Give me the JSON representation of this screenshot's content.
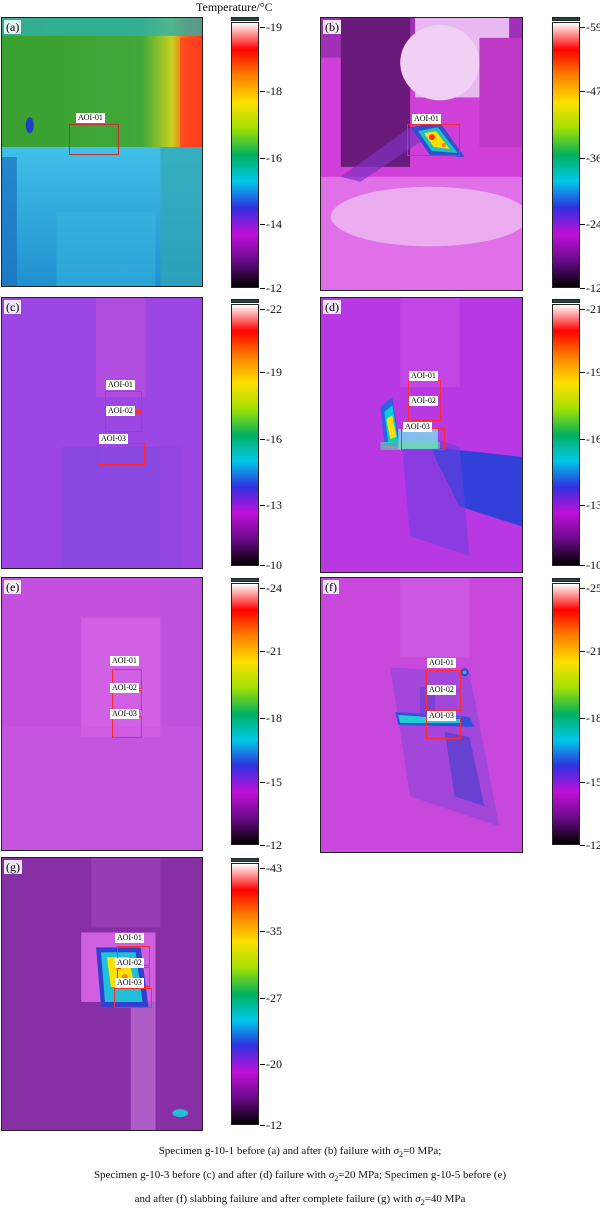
{
  "temperature_label": "Temperature/°C",
  "colorbar_gradient": [
    "#000000",
    "#6a0a8a",
    "#c010d8",
    "#3030e0",
    "#00c8e8",
    "#00b060",
    "#a0e000",
    "#ffe000",
    "#ff8000",
    "#ff0000",
    "#ffffff"
  ],
  "panels": [
    {
      "id": "a",
      "label": "(a)",
      "ticks": [
        "-19",
        "-18",
        "-16",
        "-14",
        "-12"
      ],
      "aois": [
        {
          "label": "AOI-01"
        }
      ]
    },
    {
      "id": "b",
      "label": "(b)",
      "ticks": [
        "-59",
        "-47",
        "-36",
        "-24",
        "-12"
      ],
      "aois": [
        {
          "label": "AOI-01"
        }
      ]
    },
    {
      "id": "c",
      "label": "(c)",
      "ticks": [
        "-22",
        "-19",
        "-16",
        "-13",
        "-10"
      ],
      "aois": [
        {
          "label": "AOI-01"
        },
        {
          "label": "AOI-02"
        },
        {
          "label": "AOI-03"
        }
      ]
    },
    {
      "id": "d",
      "label": "(d)",
      "ticks": [
        "-21",
        "-19",
        "-16",
        "-13",
        "-10"
      ],
      "aois": [
        {
          "label": "AOI-01"
        },
        {
          "label": "AOI-02"
        },
        {
          "label": "AOI-03"
        }
      ]
    },
    {
      "id": "e",
      "label": "(e)",
      "ticks": [
        "-24",
        "-21",
        "-18",
        "-15",
        "-12"
      ],
      "aois": [
        {
          "label": "AOI-01"
        },
        {
          "label": "AOI-02"
        },
        {
          "label": "AOI-03"
        }
      ]
    },
    {
      "id": "f",
      "label": "(f)",
      "ticks": [
        "-25",
        "-21",
        "-18",
        "-15",
        "-12"
      ],
      "aois": [
        {
          "label": "AOI-01"
        },
        {
          "label": "AOI-02"
        },
        {
          "label": "AOI-03"
        }
      ]
    },
    {
      "id": "g",
      "label": "(g)",
      "ticks": [
        "-43",
        "-35",
        "-27",
        "-20",
        "-12"
      ],
      "aois": [
        {
          "label": "AOI-01"
        },
        {
          "label": "AOI-02"
        },
        {
          "label": "AOI-03"
        }
      ]
    }
  ],
  "caption": {
    "line1_pre": "Specimen g-10-1 before (a) and after (b) failure with ",
    "line1_sigma": "σ",
    "line1_sub": "2",
    "line1_post": "=0 MPa;",
    "line2_pre": "Specimen g-10-3 before (c) and after (d) failure with ",
    "line2_sigma": "σ",
    "line2_sub": "2",
    "line2_post": "=20 MPa; Specimen g-10-5 before (e)",
    "line3_pre": "and after (f) slabbing failure and after complete failure (g) with ",
    "line3_sigma": "σ",
    "line3_sub": "2",
    "line3_post": "=40 MPa"
  }
}
